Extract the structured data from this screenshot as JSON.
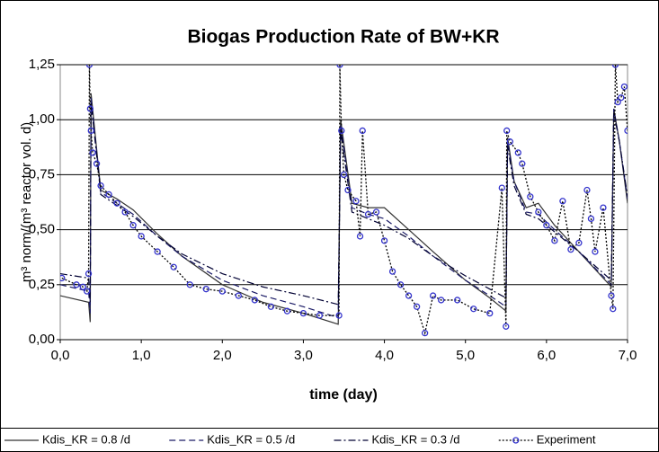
{
  "chart_data": {
    "type": "line",
    "title": "Biogas Production Rate of BW+KR",
    "xlabel": "time (day)",
    "ylabel": "m³ norm/(m³ reactor vol. d)",
    "xlim": [
      0,
      7
    ],
    "ylim": [
      0,
      1.25
    ],
    "xticks": [
      {
        "value": 0,
        "label": "0,0"
      },
      {
        "value": 1,
        "label": "1,0"
      },
      {
        "value": 2,
        "label": "2,0"
      },
      {
        "value": 3,
        "label": "3,0"
      },
      {
        "value": 4,
        "label": "4,0"
      },
      {
        "value": 5,
        "label": "5,0"
      },
      {
        "value": 6,
        "label": "6,0"
      },
      {
        "value": 7,
        "label": "7,0"
      }
    ],
    "yticks": [
      {
        "value": 0,
        "label": "0,00"
      },
      {
        "value": 0.25,
        "label": "0,25"
      },
      {
        "value": 0.5,
        "label": "0,50"
      },
      {
        "value": 0.75,
        "label": "0,75"
      },
      {
        "value": 1,
        "label": "1,00"
      },
      {
        "value": 1.25,
        "label": "1,25"
      }
    ],
    "grid": true,
    "legend": "bottom",
    "series": [
      {
        "name": "Kdis_KR = 0.8 /d",
        "color": "#333333",
        "line_style": "solid",
        "x": [
          0,
          0.35,
          0.37,
          0.38,
          0.5,
          0.7,
          0.9,
          1.2,
          1.5,
          2.0,
          2.5,
          3.0,
          3.43,
          3.46,
          3.6,
          3.8,
          4.0,
          4.3,
          4.6,
          5.0,
          5.3,
          5.5,
          5.52,
          5.6,
          5.75,
          5.9,
          6.1,
          6.4,
          6.8,
          6.83,
          6.9,
          7.0
        ],
        "values": [
          0.2,
          0.17,
          0.08,
          1.12,
          0.68,
          0.64,
          0.59,
          0.48,
          0.38,
          0.25,
          0.17,
          0.12,
          0.07,
          1.0,
          0.62,
          0.6,
          0.6,
          0.5,
          0.4,
          0.27,
          0.19,
          0.13,
          0.92,
          0.72,
          0.6,
          0.62,
          0.52,
          0.4,
          0.24,
          1.05,
          0.9,
          0.62
        ]
      },
      {
        "name": "Kdis_KR = 0.5 /d",
        "color": "#1a1a66",
        "line_style": "dashed",
        "x": [
          0,
          0.35,
          0.37,
          0.38,
          0.5,
          0.7,
          0.9,
          1.2,
          1.5,
          2.0,
          2.5,
          3.0,
          3.43,
          3.46,
          3.6,
          3.8,
          4.0,
          4.3,
          4.6,
          5.0,
          5.3,
          5.5,
          5.52,
          5.6,
          5.75,
          5.9,
          6.1,
          6.4,
          6.8,
          6.83,
          6.9,
          7.0
        ],
        "values": [
          0.25,
          0.22,
          0.12,
          1.1,
          0.67,
          0.62,
          0.57,
          0.47,
          0.38,
          0.27,
          0.2,
          0.15,
          0.1,
          0.98,
          0.6,
          0.57,
          0.55,
          0.47,
          0.38,
          0.27,
          0.2,
          0.15,
          0.9,
          0.72,
          0.58,
          0.57,
          0.5,
          0.4,
          0.25,
          1.05,
          0.9,
          0.64
        ]
      },
      {
        "name": "Kdis_KR = 0.3 /d",
        "color": "#000033",
        "line_style": "dashdot",
        "x": [
          0,
          0.35,
          0.37,
          0.38,
          0.5,
          0.7,
          0.9,
          1.2,
          1.5,
          2.0,
          2.5,
          3.0,
          3.43,
          3.46,
          3.6,
          3.8,
          4.0,
          4.3,
          4.6,
          5.0,
          5.3,
          5.5,
          5.52,
          5.6,
          5.75,
          5.9,
          6.1,
          6.4,
          6.8,
          6.83,
          6.9,
          7.0
        ],
        "values": [
          0.3,
          0.28,
          0.17,
          1.08,
          0.66,
          0.61,
          0.56,
          0.47,
          0.39,
          0.3,
          0.24,
          0.2,
          0.16,
          0.95,
          0.58,
          0.55,
          0.52,
          0.46,
          0.38,
          0.29,
          0.23,
          0.19,
          0.88,
          0.7,
          0.57,
          0.55,
          0.49,
          0.4,
          0.27,
          1.03,
          0.9,
          0.65
        ]
      },
      {
        "name": "Experiment",
        "color": "#000000",
        "line_style": "dotted",
        "marker": "circle",
        "marker_color": "#3333cc",
        "x": [
          0.02,
          0.2,
          0.28,
          0.33,
          0.35,
          0.36,
          0.37,
          0.38,
          0.4,
          0.45,
          0.5,
          0.6,
          0.7,
          0.8,
          0.9,
          1.0,
          1.2,
          1.4,
          1.6,
          1.8,
          2.0,
          2.2,
          2.4,
          2.6,
          2.8,
          3.0,
          3.2,
          3.44,
          3.45,
          3.47,
          3.5,
          3.55,
          3.65,
          3.7,
          3.73,
          3.8,
          3.9,
          4.0,
          4.1,
          4.2,
          4.3,
          4.4,
          4.5,
          4.6,
          4.7,
          4.9,
          5.1,
          5.3,
          5.45,
          5.5,
          5.51,
          5.55,
          5.65,
          5.7,
          5.8,
          5.9,
          6.0,
          6.1,
          6.2,
          6.3,
          6.4,
          6.5,
          6.55,
          6.6,
          6.7,
          6.8,
          6.82,
          6.85,
          6.88,
          6.92,
          6.96,
          7.0
        ],
        "values": [
          0.28,
          0.25,
          0.24,
          0.22,
          0.3,
          1.25,
          1.05,
          0.95,
          0.85,
          0.8,
          0.7,
          0.66,
          0.62,
          0.58,
          0.52,
          0.47,
          0.4,
          0.33,
          0.25,
          0.23,
          0.22,
          0.2,
          0.18,
          0.15,
          0.13,
          0.12,
          0.11,
          0.11,
          1.25,
          0.95,
          0.75,
          0.68,
          0.63,
          0.47,
          0.95,
          0.57,
          0.58,
          0.45,
          0.31,
          0.25,
          0.2,
          0.15,
          0.03,
          0.2,
          0.18,
          0.18,
          0.14,
          0.12,
          0.69,
          0.06,
          0.95,
          0.9,
          0.85,
          0.8,
          0.65,
          0.58,
          0.52,
          0.45,
          0.63,
          0.41,
          0.44,
          0.68,
          0.55,
          0.4,
          0.6,
          0.2,
          0.14,
          1.25,
          1.08,
          1.1,
          1.15,
          0.95
        ]
      }
    ]
  }
}
